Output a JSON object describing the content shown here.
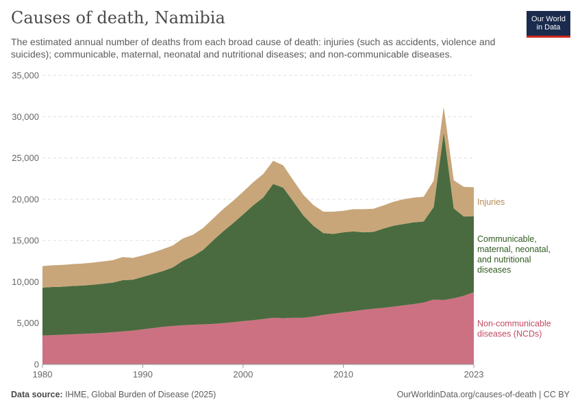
{
  "header": {
    "title": "Causes of death, Namibia",
    "subtitle": "The estimated annual number of deaths from each broad cause of death: injuries (such as accidents, violence and suicides); communicable, maternal, neonatal and nutritional diseases; and non-communicable diseases.",
    "logo_line1": "Our World",
    "logo_line2": "in Data"
  },
  "footer": {
    "source_label": "Data source:",
    "source_text": "IHME, Global Burden of Disease (2025)",
    "url": "OurWorldinData.org/causes-of-death | CC BY"
  },
  "colors": {
    "ncd": "#cc7182",
    "communicable": "#4a6b3f",
    "injuries": "#c8a67a",
    "ncd_label": "#c24b62",
    "communicable_label": "#2f5a1f",
    "injuries_label": "#b48a55"
  },
  "chart_data": {
    "type": "area",
    "stacked": true,
    "title": "Causes of death, Namibia",
    "xlabel": "",
    "ylabel": "",
    "xlim": [
      1980,
      2023
    ],
    "ylim": [
      0,
      35000
    ],
    "x_ticks": [
      "1980",
      "1990",
      "2000",
      "2010",
      "2023"
    ],
    "x_tick_values": [
      1980,
      1990,
      2000,
      2010,
      2023
    ],
    "y_ticks": [
      "0",
      "5,000",
      "10,000",
      "15,000",
      "20,000",
      "25,000",
      "30,000",
      "35,000"
    ],
    "y_tick_values": [
      0,
      5000,
      10000,
      15000,
      20000,
      25000,
      30000,
      35000
    ],
    "x": [
      1980,
      1981,
      1982,
      1983,
      1984,
      1985,
      1986,
      1987,
      1988,
      1989,
      1990,
      1991,
      1992,
      1993,
      1994,
      1995,
      1996,
      1997,
      1998,
      1999,
      2000,
      2001,
      2002,
      2003,
      2004,
      2005,
      2006,
      2007,
      2008,
      2009,
      2010,
      2011,
      2012,
      2013,
      2014,
      2015,
      2016,
      2017,
      2018,
      2019,
      2020,
      2021,
      2022,
      2023
    ],
    "series": [
      {
        "name": "Non-communicable diseases (NCDs)",
        "label_lines": [
          "Non-communicable",
          "diseases (NCDs)"
        ],
        "values": [
          3500,
          3550,
          3600,
          3650,
          3700,
          3750,
          3820,
          3900,
          4000,
          4100,
          4250,
          4400,
          4550,
          4650,
          4750,
          4800,
          4850,
          4900,
          5000,
          5100,
          5250,
          5350,
          5500,
          5650,
          5600,
          5650,
          5650,
          5800,
          6000,
          6150,
          6300,
          6450,
          6600,
          6750,
          6850,
          7000,
          7150,
          7300,
          7500,
          7850,
          7800,
          8000,
          8300,
          8750
        ]
      },
      {
        "name": "Communicable, maternal, neonatal, and nutritional diseases",
        "label_lines": [
          "Communicable,",
          "maternal, neonatal,",
          "and nutritional",
          "diseases"
        ],
        "values": [
          5800,
          5820,
          5800,
          5850,
          5850,
          5900,
          5950,
          6000,
          6200,
          6150,
          6350,
          6550,
          6750,
          7100,
          7800,
          8300,
          9000,
          10100,
          11100,
          12000,
          12900,
          13900,
          14700,
          16200,
          15800,
          14100,
          12400,
          11000,
          9900,
          9650,
          9700,
          9650,
          9400,
          9300,
          9600,
          9800,
          9850,
          9900,
          9800,
          11200,
          20300,
          10900,
          9600,
          9200
        ]
      },
      {
        "name": "Injuries",
        "label_lines": [
          "Injuries"
        ],
        "values": [
          2600,
          2630,
          2650,
          2650,
          2660,
          2680,
          2700,
          2720,
          2800,
          2650,
          2600,
          2600,
          2650,
          2650,
          2700,
          2600,
          2650,
          2650,
          2700,
          2700,
          2750,
          2800,
          2850,
          2800,
          2700,
          2550,
          2500,
          2500,
          2600,
          2700,
          2600,
          2700,
          2800,
          2800,
          2800,
          2900,
          3000,
          3000,
          3000,
          3200,
          3100,
          3400,
          3600,
          3500
        ]
      }
    ]
  }
}
